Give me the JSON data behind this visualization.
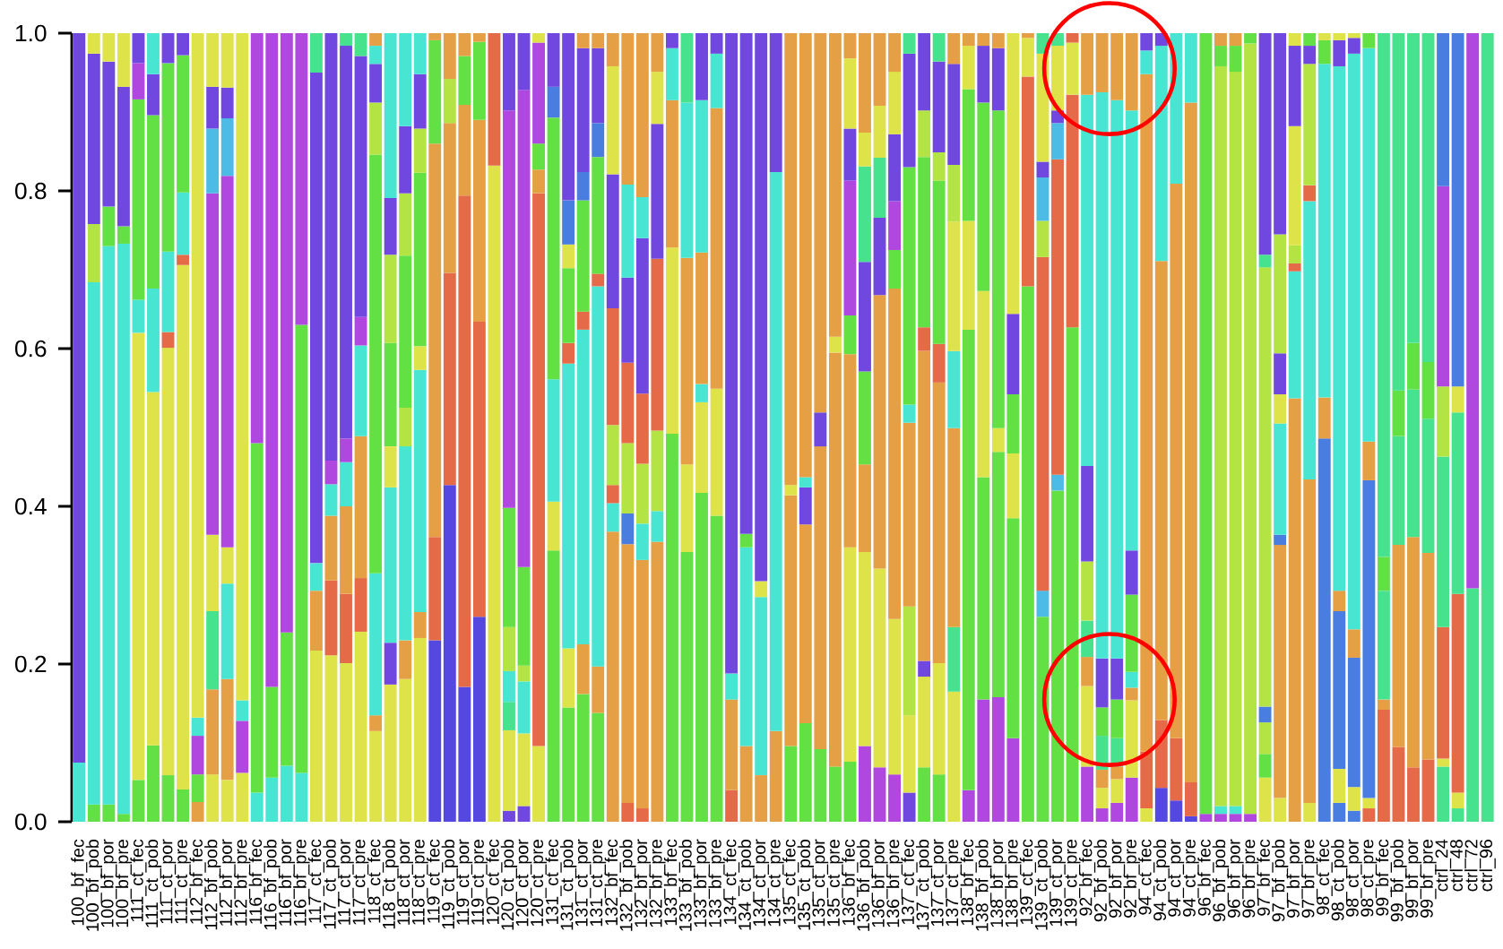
{
  "chart_data": {
    "type": "bar",
    "stacked": true,
    "categories": [
      "100_bf_fec",
      "100_bf_pob",
      "100_bf_por",
      "100_bf_pre",
      "111_ct_fec",
      "111_ct_pob",
      "111_ct_por",
      "111_ct_pre",
      "112_bf_fec",
      "112_bf_pob",
      "112_bf_por",
      "112_bf_pre",
      "116_bf_fec",
      "116_bf_pob",
      "116_bf_por",
      "116_bf_pre",
      "117_ct_fec",
      "117_ct_pob",
      "117_ct_por",
      "117_ct_pre",
      "118_ct_fec",
      "118_ct_pob",
      "118_ct_por",
      "118_ct_pre",
      "119_ct_fec",
      "119_ct_pob",
      "119_ct_por",
      "119_ct_pre",
      "120_ct_fec",
      "120_ct_pob",
      "120_ct_por",
      "120_ct_pre",
      "131_ct_fec",
      "131_ct_pob",
      "131_ct_por",
      "131_ct_pre",
      "132_bf_fec",
      "132_bf_pob",
      "132_bf_por",
      "132_bf_pre",
      "133_bf_fec",
      "133_bf_pob",
      "133_bf_por",
      "133_bf_pre",
      "134_ct_fec",
      "134_ct_pob",
      "134_ct_por",
      "134_ct_pre",
      "135_ct_fec",
      "135_ct_pob",
      "135_ct_por",
      "135_ct_pre",
      "136_bf_fec",
      "136_bf_pob",
      "136_bf_por",
      "136_bf_pre",
      "137_ct_fec",
      "137_ct_pob",
      "137_ct_por",
      "137_ct_pre",
      "138_bf_fec",
      "138_bf_pob",
      "138_bf_por",
      "138_bf_pre",
      "139_ct_fec",
      "139_ct_pob",
      "139_ct_por",
      "139_ct_pre",
      "92_bf_fec",
      "92_bf_pob",
      "92_bf_por",
      "92_bf_pre",
      "94_ct_fec",
      "94_ct_pob",
      "94_ct_por",
      "94_ct_pre",
      "96_bf_fec",
      "96_bf_pob",
      "96_bf_por",
      "96_bf_pre",
      "97_bf_fec",
      "97_bf_pob",
      "97_bf_por",
      "97_bf_pre",
      "98_ct_fec",
      "98_ct_pob",
      "98_ct_por",
      "98_ct_pre",
      "99_bf_fec",
      "99_bf_pob",
      "99_bf_por",
      "99_bf_pre",
      "ctrl_24",
      "ctrl_48",
      "ctrl_72",
      "ctrl_96"
    ],
    "series": [
      {
        "values": [
          0.075,
          0.022,
          0.022,
          0.01,
          0.053,
          0.097,
          0.059,
          0.041,
          0.025,
          0.06,
          0.053,
          0.062,
          0.037,
          0.056,
          0.071,
          0.062,
          0.217,
          0.211,
          0.201,
          0.241,
          0.115,
          0.174,
          0.181,
          0.233,
          0.23,
          0.427,
          0.171,
          0.26,
          0.832,
          0.014,
          0.02,
          0.096,
          0.344,
          0.145,
          0.162,
          0.138,
          0.368,
          0.024,
          0.017,
          0.355,
          0.492,
          0.342,
          0.417,
          0.388,
          0.04,
          0.096,
          0.059,
          0.115,
          0.096,
          0.125,
          0.092,
          0.07,
          0.076,
          0.096,
          0.069,
          0.06,
          0.037,
          0.069,
          0.06,
          0.165,
          0.04,
          0.155,
          0.158,
          0.106,
          0.679,
          0.26,
          0.42,
          0.627,
          0.07,
          0.017,
          0.024,
          0.056,
          0.017,
          0.043,
          0.027,
          0.007,
          0.01,
          0.01,
          0.01,
          0.01,
          0.056,
          0.03,
          0.537,
          0.024,
          0.486,
          0.024,
          0.014,
          0.017,
          0.142,
          0.095,
          0.069,
          0.079,
          0.07,
          0.017,
          0.296,
          1.0
        ],
        "colors": [
          "#48e6d2",
          "#62e044",
          "#62e044",
          "#62e044",
          "#62e044",
          "#62e044",
          "#62e044",
          "#62e044",
          "#e5a045",
          "#dee34a",
          "#dee34a",
          "#dee34a",
          "#48e6d2",
          "#48e6d2",
          "#48e6d2",
          "#48e6d2",
          "#dee34a",
          "#dee34a",
          "#dee34a",
          "#dee34a",
          "#dee34a",
          "#dee34a",
          "#dee34a",
          "#dee34a",
          "#5548e0",
          "#5548e0",
          "#5548e0",
          "#5548e0",
          "#dee34a",
          "#7048e0",
          "#7048e0",
          "#dee34a",
          "#62e044",
          "#62e044",
          "#62e044",
          "#62e044",
          "#e5a045",
          "#e56a48",
          "#e56a48",
          "#e5a045",
          "#62e044",
          "#62e044",
          "#62e044",
          "#62e044",
          "#e56a48",
          "#e5a045",
          "#e5a045",
          "#e5a045",
          "#62e044",
          "#62e044",
          "#62e044",
          "#62e044",
          "#62e044",
          "#b048e0",
          "#b048e0",
          "#b048e0",
          "#7048e0",
          "#62e044",
          "#62e044",
          "#dee34a",
          "#b048e0",
          "#b048e0",
          "#b048e0",
          "#b048e0",
          "#62e044",
          "#62e044",
          "#62e044",
          "#62e044",
          "#b048e0",
          "#b048e0",
          "#b048e0",
          "#b048e0",
          "#dee34a",
          "#5548e0",
          "#5548e0",
          "#5548e0",
          "#b048e0",
          "#b048e0",
          "#b048e0",
          "#b048e0",
          "#dee34a",
          "#dee34a",
          "#e5a045",
          "#dee34a",
          "#4a7de0",
          "#4a7de0",
          "#4a7de0",
          "#e56a48",
          "#e56a48",
          "#e56a48",
          "#e56a48",
          "#e56a48",
          "#46e28e",
          "#46e28e",
          "#46e28e",
          "#46e28e"
        ]
      },
      {
        "values": [
          0.925,
          0.662,
          0.708,
          0.723,
          0.567,
          0.448,
          0.542,
          0.665,
          0.035,
          0.108,
          0.128,
          0.066,
          0.443,
          0.115,
          0.169,
          0.568,
          0.076,
          0.095,
          0.088,
          0.068,
          0.02,
          0.053,
          0.049,
          0.033,
          0.131,
          0.269,
          0.623,
          0.374,
          0.168,
          0.102,
          0.092,
          0.701,
          0.062,
          0.075,
          0.063,
          0.059,
          0.036,
          0.328,
          0.315,
          0.039,
          0.236,
          0.111,
          0.115,
          0.161,
          0.115,
          0.252,
          0.226,
          0.709,
          0.318,
          0.252,
          0.384,
          0.525,
          0.272,
          0.246,
          0.252,
          0.197,
          0.098,
          0.115,
          0.141,
          0.082,
          0.584,
          0.282,
          0.311,
          0.279,
          0.266,
          0.033,
          0.02,
          0.295,
          0.102,
          0.026,
          0.03,
          0.098,
          0.072,
          0.086,
          0.079,
          0.043,
          0.99,
          0.01,
          0.01,
          0.977,
          0.03,
          0.321,
          0.161,
          0.41,
          0.052,
          0.043,
          0.03,
          0.013,
          0.013,
          0.256,
          0.292,
          0.262,
          0.01,
          0.02,
          0.704,
          null
        ],
        "colors": [
          "#7048e0",
          "#48e6d2",
          "#48e6d2",
          "#48e6d2",
          "#dee34a",
          "#dee34a",
          "#dee34a",
          "#dee34a",
          "#62e044",
          "#e5a045",
          "#e5a045",
          "#b048e0",
          "#62e044",
          "#62e044",
          "#62e044",
          "#62e044",
          "#e5a045",
          "#e56a48",
          "#e56a48",
          "#e56a48",
          "#e5a045",
          "#7048e0",
          "#e5a045",
          "#e5a045",
          "#e56a48",
          "#e56a48",
          "#e56a48",
          "#e56a48",
          "#e56a48",
          "#dee34a",
          "#dee34a",
          "#e56a48",
          "#dee34a",
          "#dee34a",
          "#e5a045",
          "#e5a045",
          "#48e6d2",
          "#e5a045",
          "#e5a045",
          "#48e6d2",
          "#dee34a",
          "#dee34a",
          "#dee34a",
          "#dee34a",
          "#e5a045",
          "#48e6d2",
          "#48e6d2",
          "#48e6d2",
          "#e5a045",
          "#e5a045",
          "#e5a045",
          "#e5a045",
          "#dee34a",
          "#dee34a",
          "#dee34a",
          "#dee34a",
          "#dee34a",
          "#dee34a",
          "#dee34a",
          "#46e28e",
          "#62e044",
          "#62e044",
          "#62e044",
          "#62e044",
          "#e56a48",
          "#4cbbe6",
          "#4cbbe6",
          "#e56a48",
          "#dee34a",
          "#dee34a",
          "#dee34a",
          "#dee34a",
          "#e56a48",
          "#e56a48",
          "#e56a48",
          "#e56a48",
          "#62e044",
          "#48e6d2",
          "#48e6d2",
          "#b4e444",
          "#62e044",
          "#e5a045",
          "#48e6d2",
          "#e5a045",
          "#e5a045",
          "#dee34a",
          "#dee34a",
          "#dee34a",
          "#e5a045",
          "#e5a045",
          "#e5a045",
          "#e5a045",
          "#dee34a",
          "#dee34a",
          "#b048e0",
          null
        ]
      },
      {
        "values": [
          null,
          0.074,
          0.05,
          0.022,
          0.042,
          0.131,
          0.02,
          0.013,
          0.049,
          0.099,
          0.121,
          0.026,
          0.52,
          0.829,
          0.76,
          0.37,
          0.035,
          0.082,
          0.111,
          0.18,
          0.18,
          0.197,
          0.246,
          0.307,
          0.499,
          0.19,
          0.115,
          0.256,
          null,
          0.036,
          0.066,
          0.03,
          0.155,
          0.361,
          0.399,
          0.482,
          0.023,
          0.039,
          0.046,
          0.102,
          0.187,
          0.262,
          0.023,
          0.356,
          0.033,
          0.017,
          0.02,
          0.176,
          0.013,
          0.047,
          0.043,
          0.02,
          0.245,
          0.111,
          0.347,
          0.419,
          0.138,
          0.02,
          0.356,
          0.252,
          0.138,
          0.236,
          0.03,
          0.082,
          0.049,
          0.423,
          0.4,
          0.066,
          0.037,
          0.023,
          0.016,
          0.016,
          0.859,
          0.582,
          0.703,
          0.862,
          null,
          0.938,
          0.931,
          0.013,
          0.04,
          0.013,
          0.01,
          0.353,
          0.423,
          0.2,
          0.164,
          0.403,
          0.138,
          0.138,
          0.187,
          0.17,
          0.167,
          0.252,
          null,
          null
        ],
        "colors": [
          null,
          "#b4e444",
          "#62e044",
          "#62e044",
          "#48e6d2",
          "#48e6d2",
          "#e56a48",
          "#e56a48",
          "#b048e0",
          "#46e28e",
          "#48e6d2",
          "#48e6d2",
          "#b048e0",
          "#b048e0",
          "#b048e0",
          "#b048e0",
          "#48e6d2",
          "#e5a045",
          "#e5a045",
          "#e5a045",
          "#48e6d2",
          "#48e6d2",
          "#48e6d2",
          "#48e6d2",
          "#e5a045",
          "#e5a045",
          "#e5a045",
          "#e5a045",
          null,
          "#46e28e",
          "#48e6d2",
          "#e5a045",
          "#48e6d2",
          "#48e6d2",
          "#48e6d2",
          "#48e6d2",
          "#e56a48",
          "#4a7de0",
          "#48e6d2",
          "#b4e444",
          "#e5a045",
          "#e5a045",
          "#48e6d2",
          "#e5a045",
          "#48e6d2",
          "#62e044",
          "#dee34a",
          "#7048e0",
          "#dee34a",
          "#7048e0",
          "#7048e0",
          "#dee34a",
          "#e5a045",
          "#e5a045",
          "#e5a045",
          "#e5a045",
          "#b4e444",
          "#7048e0",
          "#e5a045",
          "#e5a045",
          "#dee34a",
          "#dee34a",
          "#dee34a",
          "#dee34a",
          "#dee34a",
          "#e56a48",
          "#e56a48",
          "#dee34a",
          "#e5a045",
          "#e5a045",
          "#e5a045",
          "#e5a045",
          "#e5a045",
          "#e5a045",
          "#e5a045",
          "#e5a045",
          null,
          "#b4e444",
          "#b4e444",
          "#62e044",
          "#b4e444",
          "#4a7de0",
          "#e56a48",
          "#48e6d2",
          "#48e6d2",
          "#4a7de0",
          "#4a7de0",
          "#4a7de0",
          "#46e28e",
          "#46e28e",
          "#46e28e",
          "#46e28e",
          "#e56a48",
          "#e56a48",
          null,
          null
        ]
      },
      {
        "values": [
          null,
          0.216,
          0.184,
          0.177,
          0.254,
          0.22,
          0.102,
          0.079,
          0.023,
          0.097,
          0.046,
          0.846,
          null,
          null,
          null,
          null,
          0.622,
          0.04,
          0.056,
          0.115,
          0.531,
          0.052,
          0.049,
          0.03,
          0.131,
          0.056,
          0.062,
          0.099,
          null,
          0.039,
          0.02,
          0.033,
          0.332,
          0.026,
          0.023,
          0.016,
          0.076,
          0.089,
          0.076,
          0.218,
          0.066,
          0.197,
          0.167,
          0.069,
          0.812,
          0.635,
          0.695,
          null,
          0.573,
          0.013,
          0.481,
          0.385,
          0.049,
          0.118,
          0.098,
          0.049,
          0.233,
          0.393,
          0.049,
          0.098,
          0.167,
          0.239,
          0.403,
          0.075,
          0.006,
          0.046,
          0.046,
          0.012,
          0.046,
          0.043,
          0.036,
          0.02,
          0.03,
          0.273,
          0.191,
          0.088,
          null,
          0.026,
          0.033,
          null,
          0.02,
          0.141,
          0.023,
          0.02,
          0.03,
          0.026,
          0.036,
          0.049,
          0.043,
          0.058,
          0.059,
          0.072,
          0.216,
          0.23,
          null,
          null
        ],
        "colors": [
          null,
          "#7048e0",
          "#7048e0",
          "#7048e0",
          "#62e044",
          "#62e044",
          "#48e6d2",
          "#48e6d2",
          "#48e6d2",
          "#dee34a",
          "#dee34a",
          "#dee34a",
          null,
          null,
          null,
          null,
          "#7048e0",
          "#48e6d2",
          "#48e6d2",
          "#48e6d2",
          "#62e044",
          "#dee34a",
          "#b4e444",
          "#dee34a",
          "#62e044",
          "#b4e444",
          "#62e044",
          "#62e044",
          null,
          "#48e6d2",
          "#b4e444",
          "#62e044",
          "#62e044",
          "#e56a48",
          "#e56a48",
          "#e56a48",
          "#b4e444",
          "#b4e444",
          "#b4e444",
          "#e56a48",
          "#48e6d2",
          "#48e6d2",
          "#e5a045",
          "#48e6d2",
          "#7048e0",
          "#7048e0",
          "#7048e0",
          null,
          "#e5a045",
          "#48e6d2",
          "#e5a045",
          "#e5a045",
          "#62e044",
          "#62e044",
          "#7048e0",
          "#62e044",
          "#e5a045",
          "#e5a045",
          "#e56a48",
          "#48e6d2",
          "#62e044",
          "#62e044",
          "#62e044",
          "#62e044",
          "#e5a045",
          "#b4e444",
          "#4cbbe6",
          "#e56a48",
          "#46e28e",
          "#46e28e",
          "#46e28e",
          "#48e6d2",
          "#48e6d2",
          "#48e6d2",
          "#48e6d2",
          "#48e6d2",
          null,
          "#62e044",
          "#62e044",
          null,
          "#4a7de0",
          "#48e6d2",
          "#b4e444",
          "#e56a48",
          "#62e044",
          "#e5a045",
          "#e5a045",
          "#e5a045",
          "#62e044",
          "#62e044",
          "#62e044",
          "#62e044",
          "#46e28e",
          "#46e28e",
          null,
          null
        ]
      },
      {
        "values": [
          null,
          0.026,
          0.036,
          0.068,
          0.046,
          0.052,
          0.239,
          0.174,
          0.868,
          0.433,
          0.471,
          null,
          null,
          null,
          null,
          null,
          0.05,
          0.03,
          0.03,
          0.036,
          0.066,
          0.131,
          0.193,
          0.22,
          0.009,
          0.058,
          0.029,
          0.011,
          null,
          0.056,
          0.125,
          0.128,
          0.039,
          0.095,
          0.141,
          0.148,
          0.148,
          0.102,
          0.089,
          0.171,
          0.019,
          0.088,
          0.193,
          0.026,
          null,
          null,
          null,
          null,
          null,
          0.563,
          null,
          null,
          0.171,
          0.139,
          0.076,
          0.062,
          0.023,
          0.03,
          0.207,
          0.164,
          0.055,
          0.072,
          0.079,
          0.102,
          null,
          0.055,
          0.016,
          null,
          0.075,
          0.036,
          0.049,
          0.098,
          0.022,
          0.016,
          null,
          null,
          null,
          0.016,
          0.016,
          null,
          0.557,
          0.037,
          0.151,
          0.154,
          0.009,
          0.665,
          0.73,
          0.499,
          0.664,
          0.453,
          0.393,
          0.417,
          0.089,
          0.033,
          null,
          null
        ],
        "colors": [
          null,
          "#dee34a",
          "#dee34a",
          "#dee34a",
          "#b048e0",
          "#7048e0",
          "#62e044",
          "#62e044",
          "#dee34a",
          "#b048e0",
          "#b048e0",
          null,
          null,
          null,
          null,
          null,
          "#46e28e",
          "#b048e0",
          "#b048e0",
          "#b048e0",
          "#b4e444",
          "#62e044",
          "#62e044",
          "#62e044",
          "#e5a045",
          "#e5a045",
          "#e5a045",
          "#e5a045",
          null,
          "#b4e444",
          "#62e044",
          "#b048e0",
          "#4a7de0",
          "#62e044",
          "#62e044",
          "#62e044",
          "#e56a48",
          "#e56a48",
          "#e56a48",
          "#7048e0",
          "#7048e0",
          "#46e28e",
          "#48e6d2",
          "#7048e0",
          null,
          null,
          null,
          null,
          null,
          "#e5a045",
          null,
          null,
          "#b048e0",
          "#7048e0",
          "#46e28e",
          "#b048e0",
          "#48e6d2",
          "#e56a48",
          "#62e044",
          "#dee34a",
          "#dee34a",
          "#7048e0",
          "#7048e0",
          "#7048e0",
          null,
          "#4cbbe6",
          "#7048e0",
          null,
          "#b4e444",
          "#62e044",
          "#62e044",
          "#62e044",
          "#7048e0",
          "#7048e0",
          null,
          null,
          null,
          "#e5a045",
          "#e5a045",
          null,
          "#b4e444",
          "#dee34a",
          "#dee34a",
          "#b4e444",
          "#dee34a",
          "#48e6d2",
          "#48e6d2",
          "#48e6d2",
          "#46e28e",
          "#46e28e",
          "#46e28e",
          "#46e28e",
          "#b4e444",
          "#dee34a",
          null,
          null
        ]
      },
      {
        "values": [
          null,
          null,
          null,
          null,
          0.038,
          0.052,
          0.038,
          0.028,
          null,
          0.082,
          0.073,
          null,
          null,
          null,
          null,
          null,
          null,
          0.542,
          0.498,
          0.331,
          0.049,
          0.112,
          0.079,
          0.056,
          null,
          null,
          null,
          null,
          null,
          0.151,
          0.605,
          0.012,
          0.068,
          0.03,
          0.036,
          0.043,
          0.17,
          0.108,
          0.197,
          0.066,
          null,
          null,
          0.085,
          null,
          null,
          null,
          null,
          null,
          null,
          null,
          null,
          null,
          0.066,
          0.121,
          0.066,
          0.085,
          0.301,
          0.216,
          0.036,
          0.072,
          0.016,
          0.016,
          0.019,
          0.356,
          null,
          0.02,
          0.082,
          null,
          0.121,
          0.062,
          0.052,
          0.056,
          null,
          null,
          null,
          null,
          null,
          null,
          null,
          null,
          0.016,
          0.052,
          0.102,
          0.023,
          null,
          0.033,
          0.02,
          0.019,
          null,
          null,
          null,
          null,
          0.254,
          0.448,
          null,
          null
        ],
        "colors": [
          null,
          null,
          null,
          null,
          "#7048e0",
          "#48e6d2",
          "#7048e0",
          "#7048e0",
          null,
          "#4cbbe6",
          "#4cbbe6",
          null,
          null,
          null,
          null,
          null,
          null,
          "#7048e0",
          "#7048e0",
          "#7048e0",
          "#7048e0",
          "#b4e444",
          "#b4e444",
          "#b4e444",
          null,
          null,
          null,
          null,
          null,
          "#62e044",
          "#b048e0",
          "#dee34a",
          "#7048e0",
          "#dee34a",
          "#4a7de0",
          "#4a7de0",
          "#7048e0",
          "#7048e0",
          "#7048e0",
          "#dee34a",
          null,
          null,
          "#7048e0",
          null,
          null,
          null,
          null,
          null,
          null,
          null,
          null,
          null,
          "#7048e0",
          "#46e28e",
          "#dee34a",
          "#7048e0",
          "#62e044",
          "#62e044",
          "#b4e444",
          "#b4e444",
          "#e5a045",
          "#e5a045",
          "#e5a045",
          "#dee34a",
          null,
          "#7048e0",
          "#dee34a",
          null,
          "#7048e0",
          "#7048e0",
          "#7048e0",
          "#7048e0",
          null,
          null,
          null,
          null,
          null,
          null,
          null,
          null,
          "#46e28e",
          "#7048e0",
          "#7048e0",
          "#7048e0",
          null,
          "#7048e0",
          "#7048e0",
          "#62e044",
          null,
          null,
          null,
          null,
          "#b048e0",
          "#4a7de0",
          null,
          null
        ]
      },
      {
        "values": [
          null,
          null,
          null,
          null,
          null,
          null,
          null,
          null,
          null,
          0.053,
          0.039,
          null,
          null,
          null,
          null,
          null,
          null,
          null,
          0.016,
          0.029,
          0.023,
          0.072,
          0.085,
          0.069,
          null,
          null,
          null,
          null,
          null,
          0.504,
          0.072,
          null,
          null,
          0.056,
          0.157,
          0.095,
          0.137,
          0.118,
          0.052,
          0.049,
          null,
          null,
          null,
          null,
          null,
          null,
          null,
          null,
          null,
          null,
          null,
          null,
          0.089,
          0.043,
          0.092,
          0.079,
          0.144,
          0.059,
          0.115,
          0.128,
          null,
          null,
          null,
          null,
          null,
          0.137,
          0.016,
          null,
          0.471,
          0.718,
          0.708,
          0.558,
          null,
          null,
          null,
          null,
          null,
          null,
          null,
          null,
          0.281,
          0.151,
          0.016,
          0.016,
          null,
          0.009,
          0.006,
          null,
          null,
          null,
          null,
          null,
          0.194,
          null,
          null,
          null
        ],
        "colors": [
          null,
          null,
          null,
          null,
          null,
          null,
          null,
          null,
          null,
          "#7048e0",
          "#7048e0",
          null,
          null,
          null,
          null,
          null,
          null,
          null,
          "#46e28e",
          "#46e28e",
          "#48e6d2",
          "#7048e0",
          "#7048e0",
          "#7048e0",
          null,
          null,
          null,
          null,
          null,
          "#b048e0",
          "#7048e0",
          null,
          null,
          "#4a7de0",
          "#7048e0",
          "#7048e0",
          "#dee34a",
          "#48e6d2",
          "#48e6d2",
          "#e5a045",
          null,
          null,
          null,
          null,
          null,
          null,
          null,
          null,
          null,
          null,
          null,
          null,
          "#dee34a",
          "#dee34a",
          "#e5a045",
          "#dee34a",
          "#7048e0",
          "#b4e444",
          "#7048e0",
          "#7048e0",
          null,
          null,
          null,
          null,
          null,
          "#dee34a",
          "#46e28e",
          null,
          "#48e6d2",
          "#48e6d2",
          "#48e6d2",
          "#48e6d2",
          null,
          null,
          null,
          null,
          null,
          null,
          null,
          null,
          "#7048e0",
          "#b4e444",
          "#dee34a",
          "#62e044",
          null,
          "#dee34a",
          "#dee34a",
          null,
          null,
          null,
          null,
          null,
          "#4a7de0",
          null,
          null,
          null
        ]
      },
      {
        "values": [
          null,
          null,
          null,
          null,
          null,
          null,
          null,
          null,
          null,
          0.068,
          0.069,
          null,
          null,
          null,
          null,
          null,
          null,
          null,
          null,
          null,
          0.016,
          0.209,
          0.118,
          0.052,
          null,
          null,
          null,
          null,
          null,
          0.098,
          null,
          null,
          null,
          0.212,
          0.019,
          0.019,
          0.042,
          0.192,
          0.208,
          null,
          null,
          null,
          null,
          null,
          null,
          null,
          null,
          null,
          null,
          null,
          null,
          null,
          0.032,
          0.126,
          null,
          0.049,
          0.026,
          0.098,
          0.036,
          0.039,
          null,
          null,
          null,
          null,
          null,
          0.026,
          null,
          null,
          0.078,
          0.075,
          0.085,
          0.098,
          null,
          null,
          null,
          null,
          null,
          null,
          null,
          null,
          null,
          0.255,
          null,
          null,
          null,
          null,
          null,
          null,
          null,
          null,
          null,
          null,
          null,
          null,
          null,
          null
        ],
        "colors": [
          null,
          null,
          null,
          null,
          null,
          null,
          null,
          null,
          null,
          "#dee34a",
          "#dee34a",
          null,
          null,
          null,
          null,
          null,
          null,
          null,
          null,
          null,
          "#e5a045",
          "#48e6d2",
          "#48e6d2",
          "#48e6d2",
          null,
          null,
          null,
          null,
          null,
          "#7048e0",
          null,
          null,
          null,
          "#7048e0",
          "#e5a045",
          "#e5a045",
          "#e5a045",
          "#e5a045",
          "#e5a045",
          null,
          null,
          null,
          null,
          null,
          null,
          null,
          null,
          null,
          null,
          null,
          null,
          null,
          "#e5a045",
          "#e5a045",
          null,
          "#e5a045",
          "#46e28e",
          "#7048e0",
          "#46e28e",
          "#e5a045",
          null,
          null,
          null,
          null,
          null,
          "#46e28e",
          null,
          null,
          "#e5a045",
          "#e5a045",
          "#e5a045",
          "#e5a045",
          null,
          null,
          null,
          null,
          null,
          null,
          null,
          null,
          null,
          "#7048e0",
          null,
          null,
          null,
          null,
          null,
          null,
          null,
          null,
          null,
          null,
          null,
          null,
          null,
          null
        ]
      }
    ],
    "ylim": [
      0,
      1
    ],
    "yticks": [
      {
        "value": 0,
        "label": "0.0"
      },
      {
        "value": 0.2,
        "label": "0.2"
      },
      {
        "value": 0.4,
        "label": "0.4"
      },
      {
        "value": 0.6,
        "label": "0.6"
      },
      {
        "value": 0.8,
        "label": "0.8"
      },
      {
        "value": 1,
        "label": "1.0"
      }
    ]
  }
}
